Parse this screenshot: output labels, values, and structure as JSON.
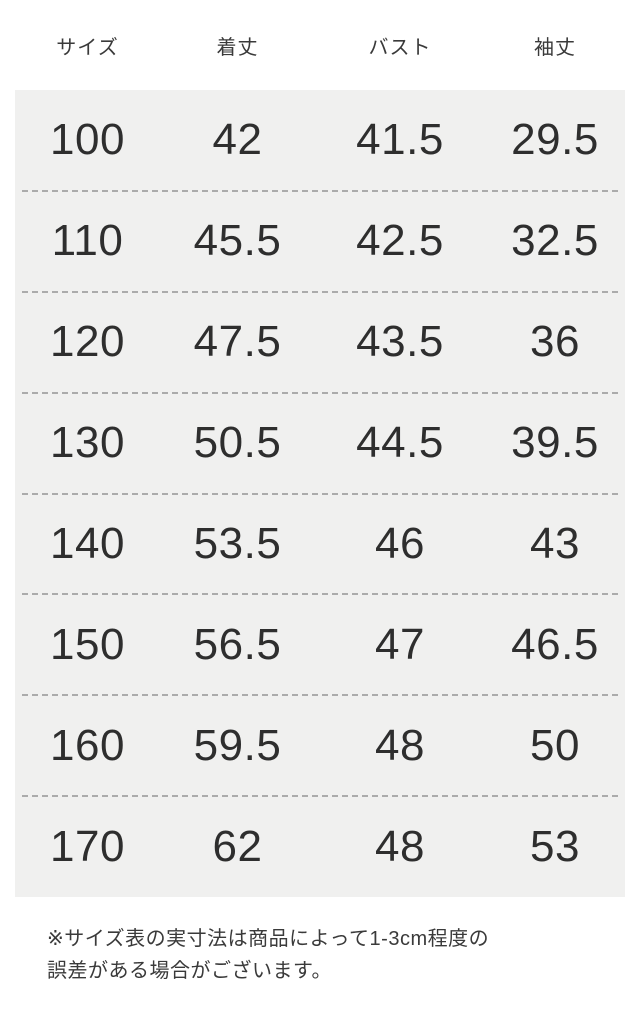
{
  "chart_data": {
    "type": "table",
    "columns": [
      {
        "key": "size",
        "label": "サイズ"
      },
      {
        "key": "body-length",
        "label": "着丈"
      },
      {
        "key": "bust",
        "label": "バスト"
      },
      {
        "key": "sleeve-length",
        "label": "袖丈"
      }
    ],
    "rows": [
      [
        100,
        42,
        41.5,
        29.5
      ],
      [
        110,
        45.5,
        42.5,
        32.5
      ],
      [
        120,
        47.5,
        43.5,
        36
      ],
      [
        130,
        50.5,
        44.5,
        39.5
      ],
      [
        140,
        53.5,
        46,
        43
      ],
      [
        150,
        56.5,
        47,
        46.5
      ],
      [
        160,
        59.5,
        48,
        50
      ],
      [
        170,
        62,
        48,
        53
      ]
    ],
    "layout": {
      "grid": "dashed-row-separators",
      "legend_position": "none"
    }
  },
  "footnote": {
    "line1": "※サイズ表の実寸法は商品によって1-3cm程度の",
    "line2": "誤差がある場合がございます。"
  },
  "colors": {
    "page_background": "#ffffff",
    "panel_background": "#f0f0ef",
    "number_text": "#2e2e2e",
    "header_text": "#3a3a3a",
    "separator": "#ababab"
  }
}
